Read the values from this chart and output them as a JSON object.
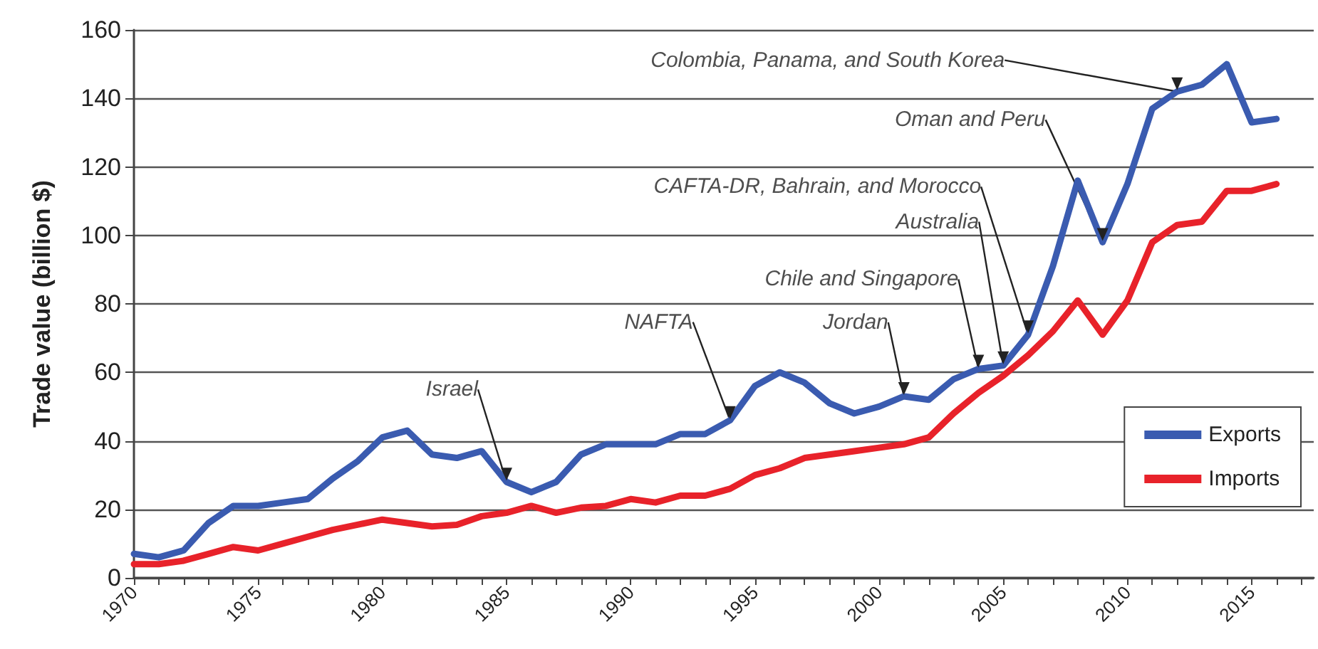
{
  "chart_data": {
    "type": "line",
    "ylabel": "Trade value (billion $)",
    "x": [
      1970,
      1971,
      1972,
      1973,
      1974,
      1975,
      1976,
      1977,
      1978,
      1979,
      1980,
      1981,
      1982,
      1983,
      1984,
      1985,
      1986,
      1987,
      1988,
      1989,
      1990,
      1991,
      1992,
      1993,
      1994,
      1995,
      1996,
      1997,
      1998,
      1999,
      2000,
      2001,
      2002,
      2003,
      2004,
      2005,
      2006,
      2007,
      2008,
      2009,
      2010,
      2011,
      2012,
      2013,
      2014,
      2015,
      2016
    ],
    "series": [
      {
        "name": "Exports",
        "color": "#3a5bb0",
        "values": [
          7,
          6,
          8,
          16,
          21,
          21,
          22,
          23,
          29,
          34,
          41,
          43,
          36,
          35,
          37,
          28,
          25,
          28,
          36,
          39,
          39,
          39,
          42,
          42,
          46,
          56,
          60,
          57,
          51,
          48,
          50,
          53,
          52,
          58,
          61,
          62,
          71,
          91,
          116,
          98,
          115,
          137,
          142,
          144,
          150,
          133,
          134
        ]
      },
      {
        "name": "Imports",
        "color": "#e8222a",
        "values": [
          4,
          4,
          5,
          7,
          9,
          8,
          10,
          12,
          14,
          15.5,
          17,
          16,
          15,
          15.5,
          18,
          19,
          21,
          19,
          20.5,
          21,
          23,
          22,
          24,
          24,
          26,
          30,
          32,
          35,
          36,
          37,
          38,
          39,
          41,
          48,
          54,
          59,
          65,
          72,
          81,
          71,
          81,
          98,
          103,
          104,
          113,
          113,
          115
        ]
      }
    ],
    "xlim": [
      1970,
      2017.5
    ],
    "xticks": [
      1970,
      {
        "value": 1971,
        "label": null
      },
      {
        "value": 1972,
        "label": null
      },
      {
        "value": 1973,
        "label": null
      },
      {
        "value": 1974,
        "label": null
      },
      1975,
      {
        "value": 1976,
        "label": null
      },
      {
        "value": 1977,
        "label": null
      },
      {
        "value": 1978,
        "label": null
      },
      {
        "value": 1979,
        "label": null
      },
      1980,
      {
        "value": 1981,
        "label": null
      },
      {
        "value": 1982,
        "label": null
      },
      {
        "value": 1983,
        "label": null
      },
      {
        "value": 1984,
        "label": null
      },
      1985,
      {
        "value": 1986,
        "label": null
      },
      {
        "value": 1987,
        "label": null
      },
      {
        "value": 1988,
        "label": null
      },
      {
        "value": 1989,
        "label": null
      },
      1990,
      {
        "value": 1991,
        "label": null
      },
      {
        "value": 1992,
        "label": null
      },
      {
        "value": 1993,
        "label": null
      },
      {
        "value": 1994,
        "label": null
      },
      1995,
      {
        "value": 1996,
        "label": null
      },
      {
        "value": 1997,
        "label": null
      },
      {
        "value": 1998,
        "label": null
      },
      {
        "value": 1999,
        "label": null
      },
      2000,
      {
        "value": 2001,
        "label": null
      },
      {
        "value": 2002,
        "label": null
      },
      {
        "value": 2003,
        "label": null
      },
      {
        "value": 2004,
        "label": null
      },
      2005,
      {
        "value": 2006,
        "label": null
      },
      {
        "value": 2007,
        "label": null
      },
      {
        "value": 2008,
        "label": null
      },
      {
        "value": 2009,
        "label": null
      },
      2010,
      {
        "value": 2011,
        "label": null
      },
      {
        "value": 2012,
        "label": null
      },
      {
        "value": 2013,
        "label": null
      },
      {
        "value": 2014,
        "label": null
      },
      2015,
      {
        "value": 2016,
        "label": null
      },
      {
        "value": 2017,
        "label": null
      }
    ],
    "ylim": [
      0,
      160
    ],
    "yticks": [
      0,
      20,
      40,
      60,
      80,
      100,
      120,
      140,
      160
    ],
    "grid": "y",
    "legend": "bottom right",
    "marker": "none",
    "line_style": "solid",
    "annotations": [
      {
        "text": "Israel",
        "x": 1985,
        "y": 28
      },
      {
        "text": "NAFTA",
        "x": 1994,
        "y": 46
      },
      {
        "text": "Jordan",
        "x": 2001,
        "y": 53
      },
      {
        "text": "Chile and Singapore",
        "x": 2004,
        "y": 61
      },
      {
        "text": "Australia",
        "x": 2005,
        "y": 62
      },
      {
        "text": "CAFTA-DR, Bahrain, and Morocco",
        "x": 2006,
        "y": 71
      },
      {
        "text": "Oman and Peru",
        "x": 2009,
        "y": 98
      },
      {
        "text": "Colombia, Panama, and South Korea",
        "x": 2012,
        "y": 142
      }
    ]
  }
}
